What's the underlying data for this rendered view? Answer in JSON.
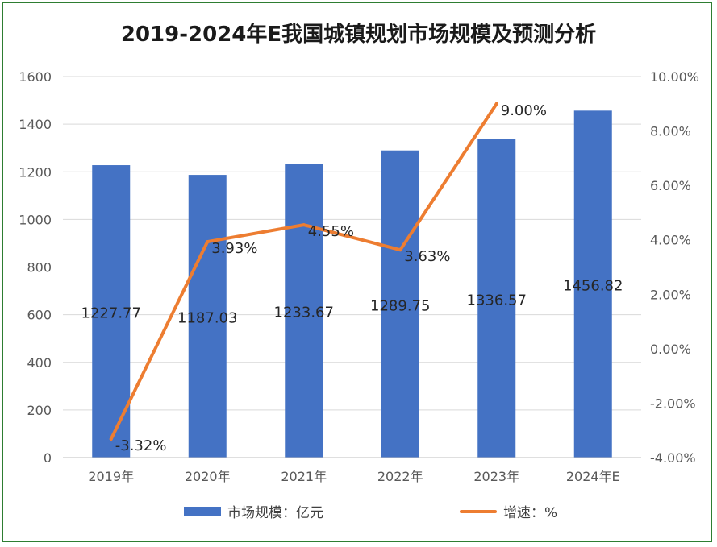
{
  "chart_data": {
    "type": "bar",
    "title": "2019-2024年E我国城镇规划市场规模及预测分析",
    "categories": [
      "2019年",
      "2020年",
      "2021年",
      "2022年",
      "2023年",
      "2024年E"
    ],
    "series": [
      {
        "name": "市场规模：亿元",
        "type": "bar",
        "axis": "left",
        "color": "#4472c4",
        "values": [
          1227.77,
          1187.03,
          1233.67,
          1289.75,
          1336.57,
          1456.82
        ],
        "labels": [
          "1227.77",
          "1187.03",
          "1233.67",
          "1289.75",
          "1336.57",
          "1456.82"
        ]
      },
      {
        "name": "增速：%",
        "type": "line",
        "axis": "right",
        "color": "#ed7d31",
        "values": [
          -3.32,
          3.93,
          4.55,
          3.63,
          9.0,
          null
        ],
        "labels": [
          "-3.32%",
          "3.93%",
          "4.55%",
          "3.63%",
          "9.00%",
          ""
        ]
      }
    ],
    "y_left": {
      "ylim": [
        0,
        1600
      ],
      "ticks": [
        0,
        200,
        400,
        600,
        800,
        1000,
        1200,
        1400,
        1600
      ],
      "tick_labels": [
        "0",
        "200",
        "400",
        "600",
        "800",
        "1000",
        "1200",
        "1400",
        "1600"
      ]
    },
    "y_right": {
      "ylim": [
        -4,
        10
      ],
      "ticks": [
        -4,
        -2,
        0,
        2,
        4,
        6,
        8,
        10
      ],
      "tick_labels": [
        "-4.00%",
        "-2.00%",
        "0.00%",
        "2.00%",
        "4.00%",
        "6.00%",
        "8.00%",
        "10.00%"
      ]
    },
    "grid": true,
    "legend_position": "bottom"
  }
}
